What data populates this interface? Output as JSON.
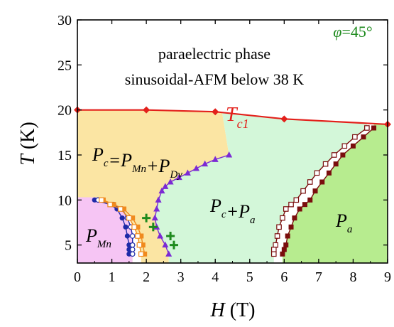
{
  "chart_data": {
    "type": "line",
    "title": "",
    "xlabel": {
      "var": "H",
      "unit": " (T)"
    },
    "ylabel": {
      "var": "T",
      "unit": " (K)"
    },
    "xlim": [
      0,
      9
    ],
    "ylim": [
      3,
      30
    ],
    "x_ticks": [
      "0",
      "1",
      "2",
      "3",
      "4",
      "5",
      "6",
      "7",
      "8",
      "9"
    ],
    "y_ticks": [
      "5",
      "10",
      "15",
      "20",
      "25",
      "30"
    ],
    "y_tick_values": [
      5,
      10,
      15,
      20,
      25,
      30
    ],
    "angle_label": {
      "var": "φ",
      "value": "=45°"
    },
    "annotations": [
      "paraelectric phase",
      "sinusoidal-AFM below 38 K"
    ],
    "tc1_label": {
      "main": "T",
      "sub": "c1"
    },
    "phase_labels": [
      {
        "id": "pc",
        "parts": [
          [
            "P",
            "c"
          ],
          [
            "=P",
            "Mn"
          ],
          [
            "+P",
            "Dy"
          ]
        ]
      },
      {
        "id": "pcpa",
        "parts": [
          [
            "P",
            "c"
          ],
          [
            "+P",
            "a"
          ]
        ]
      },
      {
        "id": "pmn",
        "parts": [
          [
            "P",
            "Mn"
          ]
        ]
      },
      {
        "id": "pa",
        "parts": [
          [
            "P",
            "a"
          ]
        ]
      }
    ],
    "colors": {
      "tc1": "#e3201b",
      "navy": "#1f2aa8",
      "orange": "#f08a1e",
      "purple": "#7b2ad4",
      "maroon": "#7a0d0d",
      "green_cross": "#1d8a1d",
      "region_pc": "#fbe5a3",
      "region_pcpa": "#d3f7d9",
      "region_pmn": "#f6c5f4",
      "region_pa": "#b7ec8f"
    },
    "series": [
      {
        "id": "tc1",
        "marker": "diamond",
        "x": [
          0,
          2,
          4,
          6,
          9
        ],
        "y": [
          20.0,
          20.0,
          19.8,
          19.0,
          18.4
        ]
      },
      {
        "id": "navy_filled",
        "marker": "circle-filled",
        "x": [
          0.5,
          0.95,
          1.15,
          1.3,
          1.4,
          1.45,
          1.5,
          1.5,
          1.5
        ],
        "y": [
          10,
          9.5,
          9,
          8,
          7,
          6,
          5,
          4.5,
          4
        ]
      },
      {
        "id": "navy_open",
        "marker": "circle-open",
        "x": [
          0.6,
          1.05,
          1.3,
          1.45,
          1.55,
          1.6,
          1.6,
          1.6,
          1.6
        ],
        "y": [
          10,
          9.5,
          9,
          8,
          7,
          6,
          5,
          4.5,
          4
        ]
      },
      {
        "id": "orange_filled",
        "marker": "square-filled",
        "x": [
          0.75,
          1.05,
          1.35,
          1.6,
          1.75,
          1.85,
          1.9,
          1.95
        ],
        "y": [
          10,
          9.5,
          9,
          8,
          7,
          6,
          5,
          4
        ]
      },
      {
        "id": "orange_open",
        "marker": "square-open",
        "x": [
          0.7,
          0.95,
          1.25,
          1.5,
          1.65,
          1.75,
          1.8,
          1.85
        ],
        "y": [
          10,
          9.5,
          9,
          8,
          7,
          6,
          5,
          4
        ]
      },
      {
        "id": "purple",
        "marker": "triangle",
        "x": [
          4.4,
          4.0,
          3.7,
          3.45,
          3.2,
          2.95,
          2.7,
          2.55,
          2.45,
          2.35,
          2.3,
          2.25,
          2.3,
          2.4,
          2.55,
          2.65
        ],
        "y": [
          15,
          14.5,
          14,
          13.5,
          13,
          12.5,
          12,
          11.5,
          11,
          10,
          9,
          8,
          7,
          6,
          5,
          4
        ]
      },
      {
        "id": "maroon_filled",
        "marker": "square-filled",
        "x": [
          8.6,
          8.3,
          8.0,
          7.7,
          7.5,
          7.3,
          7.1,
          6.9,
          6.75,
          6.6,
          6.45,
          6.3,
          6.2,
          6.1,
          6.05,
          6.0,
          5.95
        ],
        "y": [
          18,
          17,
          16,
          15,
          14,
          13,
          12,
          11,
          10,
          9.5,
          9,
          8,
          7,
          6,
          5,
          4.5,
          4
        ]
      },
      {
        "id": "maroon_open",
        "marker": "square-open",
        "x": [
          8.4,
          8.05,
          7.75,
          7.45,
          7.2,
          6.95,
          6.75,
          6.55,
          6.35,
          6.2,
          6.05,
          5.95,
          5.85,
          5.8,
          5.75,
          5.7,
          5.7
        ],
        "y": [
          18,
          17,
          16,
          15,
          14,
          13,
          12,
          11,
          10,
          9.5,
          9,
          8,
          7,
          6,
          5,
          4.5,
          4
        ]
      },
      {
        "id": "green_crosses",
        "marker": "cross",
        "x": [
          2.0,
          2.2,
          2.7,
          2.8
        ],
        "y": [
          8,
          7,
          6,
          5
        ]
      }
    ]
  }
}
